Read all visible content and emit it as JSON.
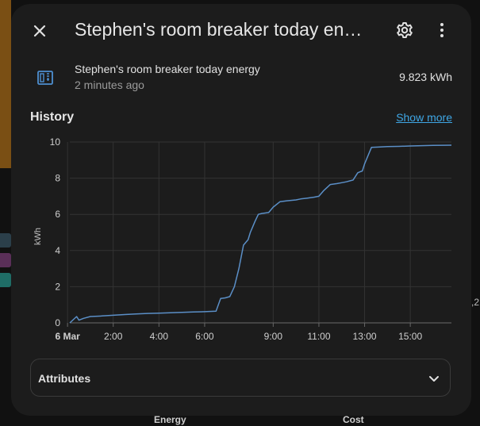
{
  "background": {
    "energy_label": "Energy",
    "cost_label": "Cost",
    "fragment_text": ",2"
  },
  "dialog": {
    "title": "Stephen's room breaker today energy",
    "close_icon": "close-icon",
    "settings_icon": "gear-icon",
    "menu_icon": "more-vertical-icon"
  },
  "entity": {
    "icon": "meter-icon",
    "name": "Stephen's room breaker today energy",
    "last_changed": "2 minutes ago",
    "state": "9.823 kWh"
  },
  "history": {
    "title": "History",
    "show_more": "Show more"
  },
  "chart_data": {
    "type": "line",
    "ylabel": "kWh",
    "ylim": [
      0,
      10
    ],
    "yticks": [
      "0",
      "2",
      "4",
      "6",
      "8",
      "10"
    ],
    "xlim": [
      0.1,
      16.8
    ],
    "xticks": [
      {
        "label": "6 Mar",
        "value": 0,
        "bold": true
      },
      {
        "label": "2:00",
        "value": 2
      },
      {
        "label": "4:00",
        "value": 4
      },
      {
        "label": "6:00",
        "value": 6
      },
      {
        "label": "9:00",
        "value": 9
      },
      {
        "label": "11:00",
        "value": 11
      },
      {
        "label": "13:00",
        "value": 13
      },
      {
        "label": "15:00",
        "value": 15
      }
    ],
    "color": "#5b8fc7",
    "series": [
      {
        "x": [
          0.1,
          0.4,
          0.5,
          0.7,
          1.0,
          1.5,
          2.0,
          2.5,
          3.0,
          3.5,
          4.0,
          4.5,
          5.0,
          5.5,
          6.0,
          6.5,
          6.7,
          6.9,
          7.1,
          7.3,
          7.5,
          7.7,
          7.9,
          8.0,
          8.1,
          8.2,
          8.35,
          8.5,
          8.8,
          9.0,
          9.3,
          9.6,
          10.0,
          10.2,
          10.5,
          10.8,
          11.0,
          11.2,
          11.5,
          11.8,
          12.0,
          12.2,
          12.5,
          12.7,
          12.8,
          12.9,
          13.0,
          13.3,
          13.6,
          14.0,
          14.5,
          15.0,
          15.5,
          16.0,
          16.5,
          16.8
        ],
        "y": [
          0.0,
          0.35,
          0.15,
          0.25,
          0.35,
          0.38,
          0.42,
          0.46,
          0.49,
          0.52,
          0.54,
          0.56,
          0.58,
          0.6,
          0.62,
          0.65,
          1.35,
          1.38,
          1.45,
          2.0,
          3.0,
          4.3,
          4.6,
          5.0,
          5.3,
          5.6,
          6.0,
          6.05,
          6.1,
          6.4,
          6.7,
          6.75,
          6.8,
          6.85,
          6.9,
          6.95,
          7.0,
          7.3,
          7.65,
          7.7,
          7.75,
          7.8,
          7.9,
          8.3,
          8.35,
          8.4,
          8.8,
          9.7,
          9.72,
          9.75,
          9.76,
          9.78,
          9.8,
          9.81,
          9.82,
          9.823
        ]
      }
    ]
  },
  "attributes": {
    "label": "Attributes",
    "chevron_icon": "chevron-down-icon"
  }
}
